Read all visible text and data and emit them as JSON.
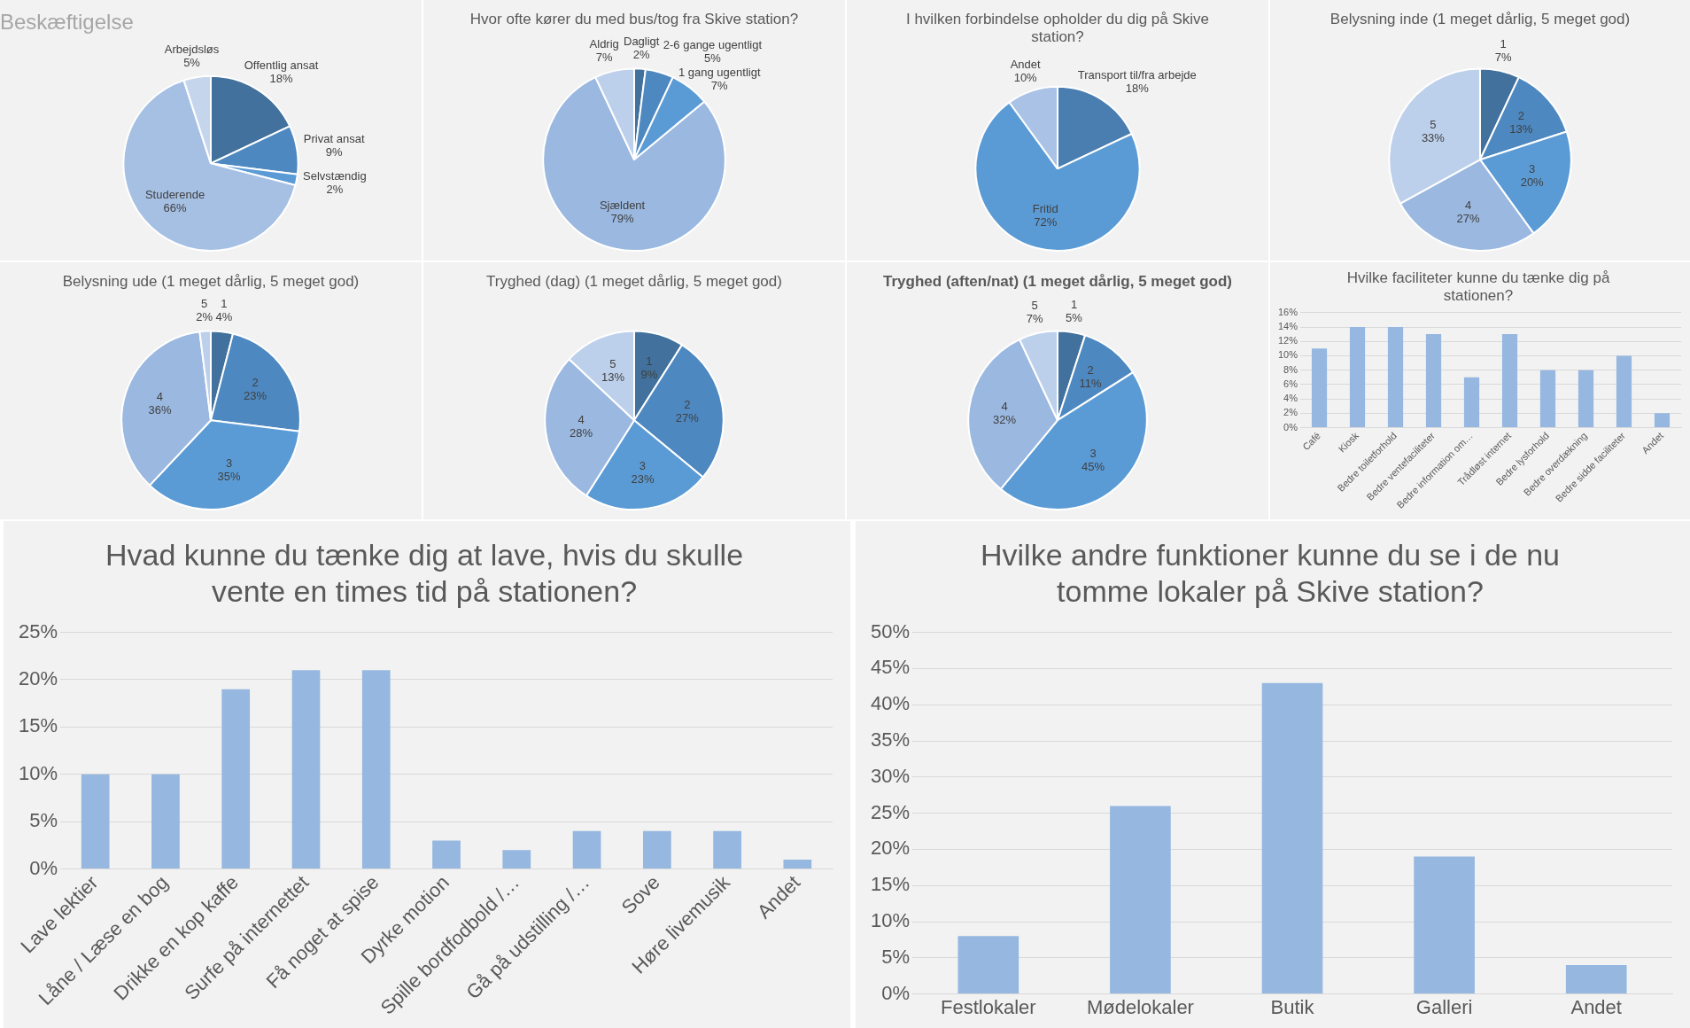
{
  "chart_data": [
    {
      "type": "pie",
      "title": "Beskæftigelse",
      "categories": [
        "Offentlig ansat",
        "Privat ansat",
        "Selvstændig",
        "Studerende",
        "Arbejdsløs"
      ],
      "values": [
        18,
        9,
        2,
        66,
        5
      ],
      "colors": [
        "#41719c",
        "#4e88c0",
        "#5b9bd5",
        "#a6c0e4",
        "#c5d5ec"
      ],
      "value_labels": [
        "18%",
        "9%",
        "2%",
        "66%",
        "5%"
      ],
      "legend": false
    },
    {
      "type": "pie",
      "title": "Hvor ofte kører du med bus/tog fra Skive station?",
      "categories": [
        "Dagligt",
        "2-6 gange ugentligt",
        "1 gang ugentligt",
        "Sjældent",
        "Aldrig"
      ],
      "values": [
        2,
        5,
        7,
        79,
        7
      ],
      "colors": [
        "#41719c",
        "#4e88c0",
        "#5b9bd5",
        "#9ab8e0",
        "#bdd0eb"
      ],
      "value_labels": [
        "2%",
        "5%",
        "7%",
        "79%",
        "7%"
      ],
      "legend": false
    },
    {
      "type": "pie",
      "title": "I hvilken forbindelse opholder du dig på Skive\nstation?",
      "categories": [
        "Transport til/fra arbejde",
        "Fritid",
        "Andet"
      ],
      "values": [
        18,
        72,
        10
      ],
      "colors": [
        "#4a7eb0",
        "#5b9bd5",
        "#a9c2e6"
      ],
      "value_labels": [
        "18%",
        "72%",
        "10%"
      ],
      "legend": false
    },
    {
      "type": "pie",
      "title": "Belysning inde (1 meget dårlig, 5 meget god)",
      "categories": [
        "1",
        "2",
        "3",
        "4",
        "5"
      ],
      "values": [
        7,
        13,
        20,
        27,
        33
      ],
      "colors": [
        "#41719c",
        "#4e88c0",
        "#5b9bd5",
        "#9ab8e0",
        "#bdd0eb"
      ],
      "value_labels": [
        "7%",
        "13%",
        "20%",
        "27%",
        "33%"
      ],
      "legend": false
    },
    {
      "type": "pie",
      "title": "Belysning ude (1 meget dårlig, 5 meget god)",
      "categories": [
        "1",
        "2",
        "3",
        "4",
        "5"
      ],
      "values": [
        4,
        23,
        35,
        36,
        2
      ],
      "colors": [
        "#41719c",
        "#4e88c0",
        "#5b9bd5",
        "#9ab8e0",
        "#bdd0eb"
      ],
      "value_labels": [
        "4%",
        "23%",
        "35%",
        "36%",
        "2%"
      ],
      "legend": false
    },
    {
      "type": "pie",
      "title": "Tryghed (dag) (1 meget dårlig, 5 meget god)",
      "categories": [
        "1",
        "2",
        "3",
        "4",
        "5"
      ],
      "values": [
        9,
        27,
        23,
        28,
        13
      ],
      "colors": [
        "#41719c",
        "#4e88c0",
        "#5b9bd5",
        "#9ab8e0",
        "#bdd0eb"
      ],
      "value_labels": [
        "9%",
        "27%",
        "23%",
        "28%",
        "13%"
      ],
      "legend": false
    },
    {
      "type": "pie",
      "title": "Tryghed (aften/nat) (1 meget dårlig, 5 meget god)",
      "categories": [
        "1",
        "2",
        "3",
        "4",
        "5"
      ],
      "values": [
        5,
        11,
        45,
        32,
        7
      ],
      "colors": [
        "#41719c",
        "#4e88c0",
        "#5b9bd5",
        "#9ab8e0",
        "#bdd0eb"
      ],
      "value_labels": [
        "5%",
        "11%",
        "45%",
        "32%",
        "7%"
      ],
      "legend": false
    },
    {
      "type": "bar",
      "title": "Hvilke faciliteter kunne du tænke dig på\nstationen?",
      "categories": [
        "Café",
        "Kiosk",
        "Bedre toiletforhold",
        "Bedre ventefaciliteter",
        "Bedre information om…",
        "Trådløst internet",
        "Bedre lysforhold",
        "Bedre overdækning",
        "Bedre sidde faciliteter",
        "Andet"
      ],
      "values": [
        11,
        14,
        14,
        13,
        7,
        13,
        8,
        8,
        10,
        2
      ],
      "color": "#95b7e0",
      "ylim": [
        0,
        16
      ],
      "yticks": [
        {
          "value": 0,
          "label": "0%"
        },
        {
          "value": 2,
          "label": "2%"
        },
        {
          "value": 4,
          "label": "4%"
        },
        {
          "value": 6,
          "label": "6%"
        },
        {
          "value": 8,
          "label": "8%"
        },
        {
          "value": 10,
          "label": "10%"
        },
        {
          "value": 12,
          "label": "12%"
        },
        {
          "value": 14,
          "label": "14%"
        },
        {
          "value": 16,
          "label": "16%"
        }
      ],
      "grid": "y",
      "legend": false
    },
    {
      "type": "bar",
      "title": "Hvad kunne du tænke dig at lave, hvis du skulle\nvente en times tid på stationen?",
      "categories": [
        "Lave lektier",
        "Låne / Læse en bog",
        "Drikke en kop kaffe",
        "Surfe på internettet",
        "Få noget at spise",
        "Dyrke motion",
        "Spille bordfodbold /…",
        "Gå på udstilling /…",
        "Sove",
        "Høre livemusik",
        "Andet"
      ],
      "values": [
        10,
        10,
        19,
        21,
        21,
        3,
        2,
        4,
        4,
        4,
        1
      ],
      "color": "#95b7e0",
      "ylim": [
        0,
        25
      ],
      "yticks": [
        {
          "value": 0,
          "label": "0%"
        },
        {
          "value": 5,
          "label": "5%"
        },
        {
          "value": 10,
          "label": "10%"
        },
        {
          "value": 15,
          "label": "15%"
        },
        {
          "value": 20,
          "label": "20%"
        },
        {
          "value": 25,
          "label": "25%"
        }
      ],
      "grid": "y",
      "legend": false
    },
    {
      "type": "bar",
      "title": "Hvilke andre funktioner kunne du se i de nu\ntomme lokaler på Skive station?",
      "categories": [
        "Festlokaler",
        "Mødelokaler",
        "Butik",
        "Galleri",
        "Andet"
      ],
      "values": [
        8,
        26,
        43,
        19,
        4
      ],
      "color": "#95b7e0",
      "ylim": [
        0,
        50
      ],
      "yticks": [
        {
          "value": 0,
          "label": "0%"
        },
        {
          "value": 5,
          "label": "5%"
        },
        {
          "value": 10,
          "label": "10%"
        },
        {
          "value": 15,
          "label": "15%"
        },
        {
          "value": 20,
          "label": "20%"
        },
        {
          "value": 25,
          "label": "25%"
        },
        {
          "value": 30,
          "label": "30%"
        },
        {
          "value": 35,
          "label": "35%"
        },
        {
          "value": 40,
          "label": "40%"
        },
        {
          "value": 45,
          "label": "45%"
        },
        {
          "value": 50,
          "label": "50%"
        }
      ],
      "grid": "y",
      "legend": false
    }
  ]
}
